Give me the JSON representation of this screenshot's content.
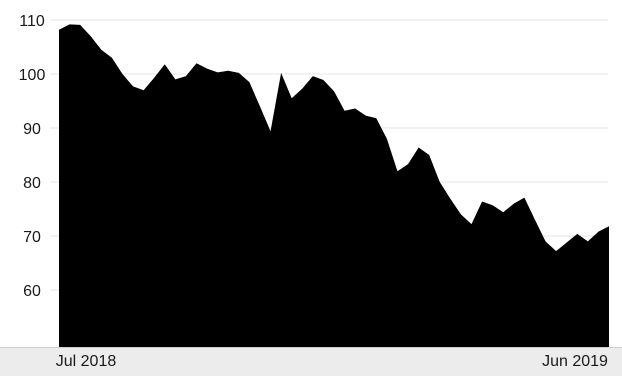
{
  "chart_data": {
    "type": "area",
    "title": "",
    "xlabel": "",
    "ylabel": "",
    "ylim": [
      50,
      112
    ],
    "yticks": [
      60,
      70,
      80,
      90,
      100,
      110
    ],
    "x_tick_labels": [
      "Jul 2018",
      "Jun 2019"
    ],
    "grid": true,
    "legend": "none",
    "fill_color": "#000000",
    "grid_color": "#e6e6e6",
    "x_axis_band_color": "#ececec",
    "series": [
      {
        "values": [
          108.2,
          109.2,
          109.1,
          107.0,
          104.5,
          103.0,
          100.0,
          97.7,
          97.0,
          99.3,
          101.8,
          99.0,
          99.6,
          102.0,
          101.0,
          100.3,
          100.6,
          100.2,
          98.5,
          94.0,
          89.4,
          100.2,
          95.5,
          97.3,
          99.6,
          98.9,
          96.8,
          93.2,
          93.6,
          92.3,
          91.8,
          88.0,
          82.0,
          83.3,
          86.4,
          85.0,
          80.0,
          76.9,
          74.0,
          72.2,
          76.4,
          75.7,
          74.4,
          76.0,
          77.1,
          73.0,
          69.0,
          67.2,
          68.8,
          70.4,
          69.0,
          70.8,
          71.8
        ]
      }
    ]
  }
}
